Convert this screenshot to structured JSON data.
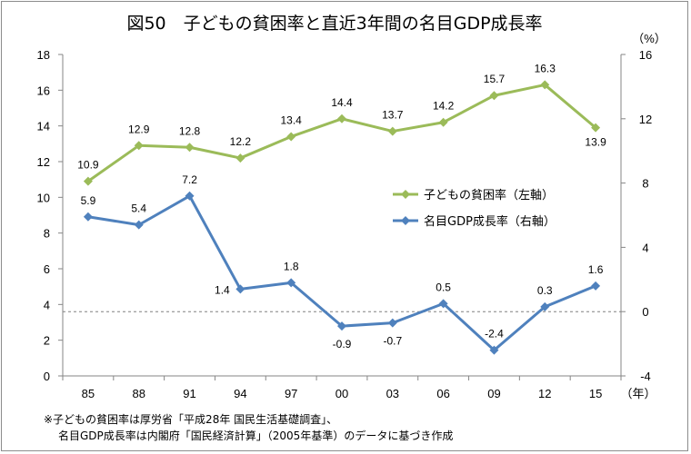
{
  "chart_data": {
    "type": "line",
    "title": "図50　子どもの貧困率と直近3年間の名目GDP成長率",
    "right_unit": "（%）",
    "x_unit": "（年）",
    "categories": [
      "85",
      "88",
      "91",
      "94",
      "97",
      "00",
      "03",
      "06",
      "09",
      "12",
      "15"
    ],
    "left_axis": {
      "range": [
        0,
        18
      ],
      "ticks": [
        "0",
        "2",
        "4",
        "6",
        "8",
        "10",
        "12",
        "14",
        "16",
        "18"
      ]
    },
    "right_axis": {
      "range": [
        -4,
        16
      ],
      "ticks": [
        "-4",
        "0",
        "4",
        "8",
        "12",
        "16"
      ]
    },
    "series": [
      {
        "name": "子どもの貧困率（左軸）",
        "axis": "left",
        "color": "#9bbb59",
        "marker": "diamond",
        "values": [
          10.9,
          12.9,
          12.8,
          12.2,
          13.4,
          14.4,
          13.7,
          14.2,
          15.7,
          16.3,
          13.9
        ],
        "labels": [
          "10.9",
          "12.9",
          "12.8",
          "12.2",
          "13.4",
          "14.4",
          "13.7",
          "14.2",
          "15.7",
          "16.3",
          "13.9"
        ]
      },
      {
        "name": "名目GDP成長率（右軸）",
        "axis": "right",
        "color": "#4f81bd",
        "marker": "diamond",
        "values": [
          5.9,
          5.4,
          7.2,
          1.4,
          1.8,
          -0.9,
          -0.7,
          0.5,
          -2.4,
          0.3,
          1.6
        ],
        "labels": [
          "5.9",
          "5.4",
          "7.2",
          "1.4",
          "1.8",
          "-0.9",
          "-0.7",
          "0.5",
          "-2.4",
          "0.3",
          "1.6"
        ]
      }
    ],
    "reference_line": {
      "axis": "right",
      "value": 0,
      "style": "dashed"
    },
    "notes": [
      "※子どもの貧困率は厚労省「平成28年 国民生活基礎調査」、",
      "名目GDP成長率は内閣府「国民経済計算」（2005年基準）のデータに基づき作成"
    ]
  }
}
